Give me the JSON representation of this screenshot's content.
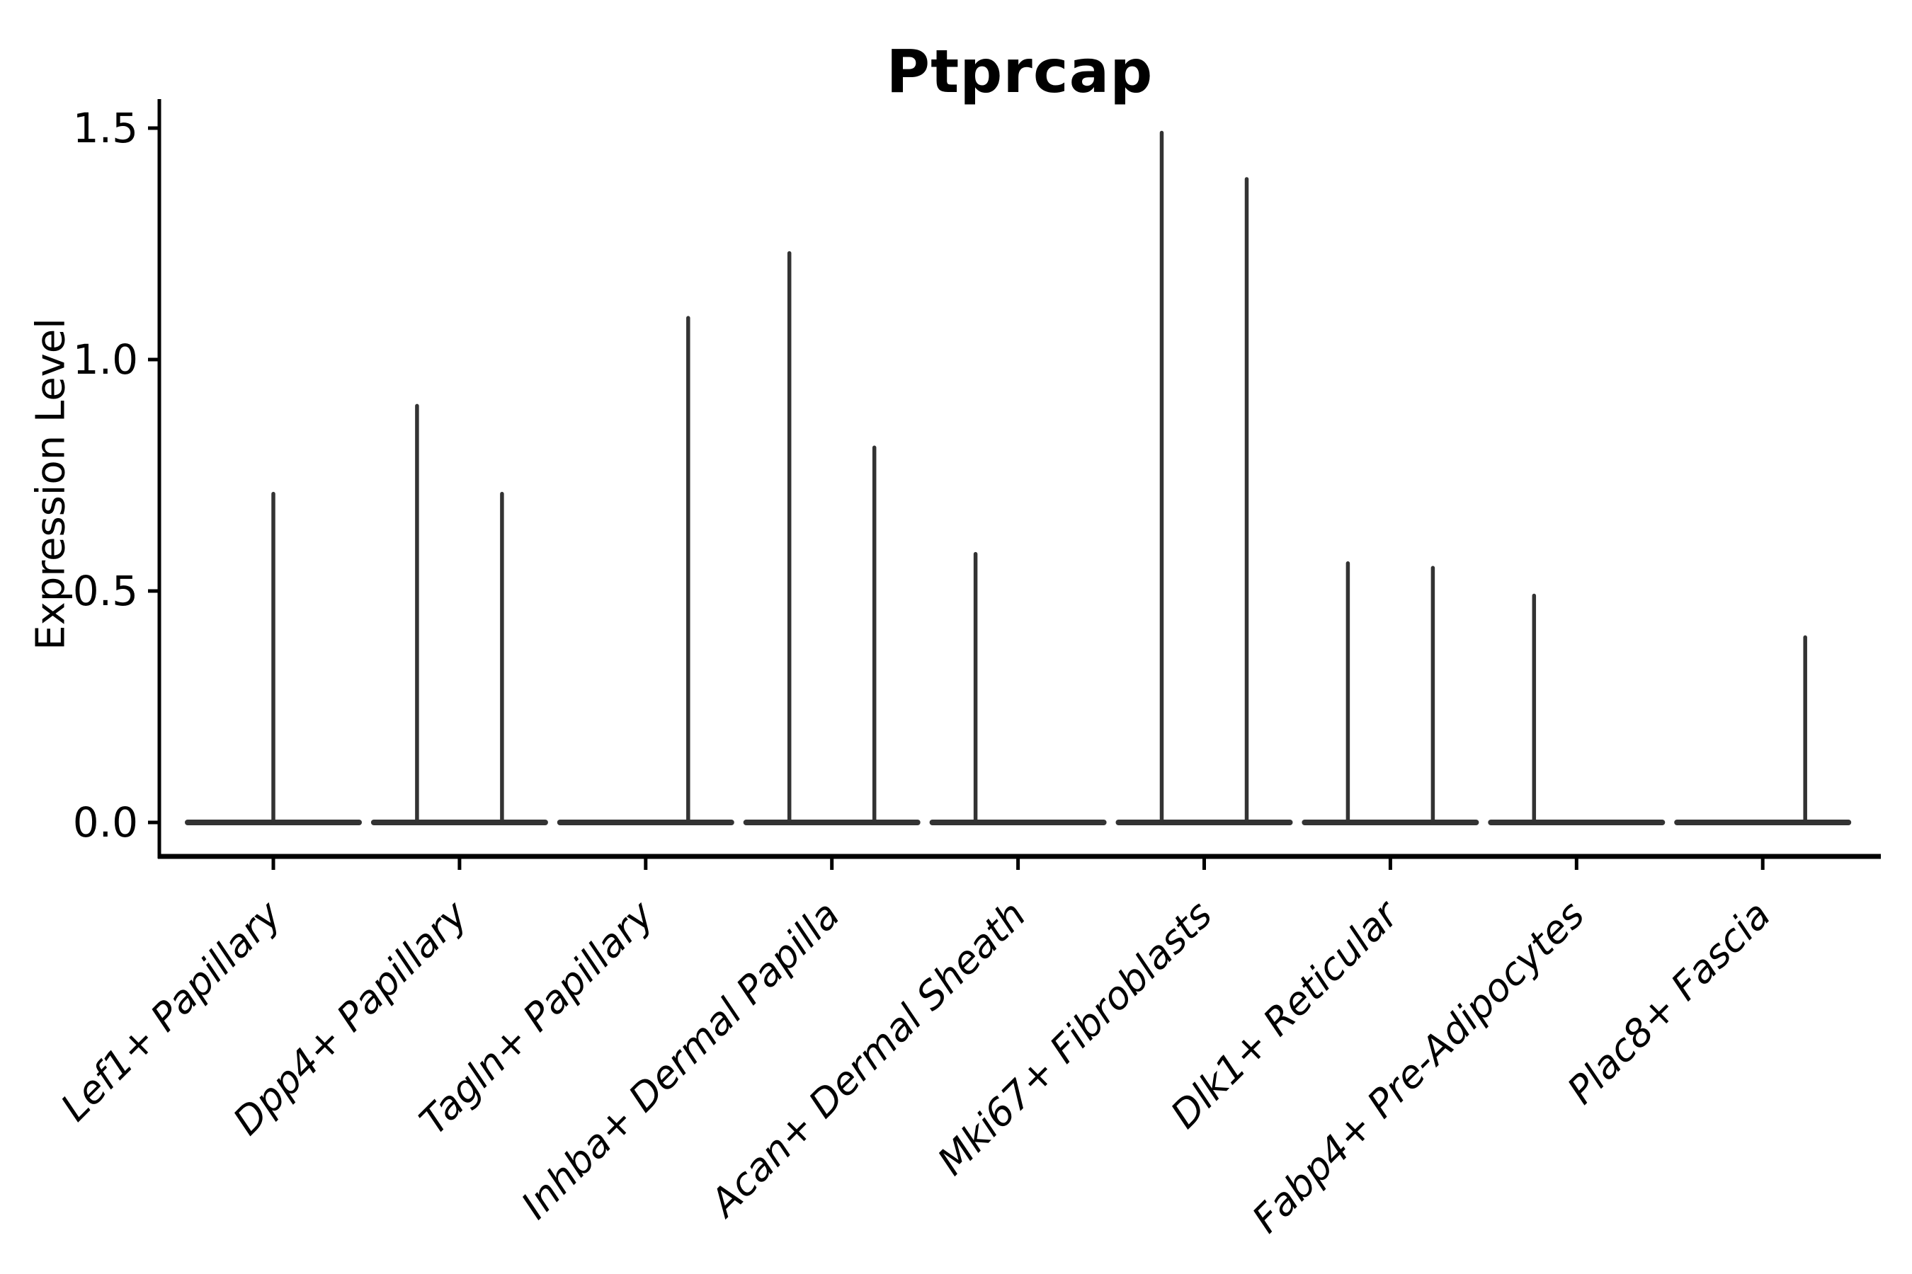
{
  "title": "Ptprcap",
  "axes": {
    "y_label": "Expression Level",
    "y_tick_labels": [
      "0.0",
      "0.5",
      "1.0",
      "1.5"
    ],
    "y_tick_values": [
      0.0,
      0.5,
      1.0,
      1.5
    ]
  },
  "chart_data": {
    "type": "violin",
    "title": "Ptprcap",
    "xlabel": "",
    "ylabel": "Expression Level",
    "ylim": [
      0,
      1.5
    ],
    "y_ticks": [
      0.0,
      0.5,
      1.0,
      1.5
    ],
    "grid": false,
    "legend": "none",
    "categories": [
      "Lef1+ Papillary",
      "Dpp4+ Papillary",
      "Tagln+ Papillary",
      "Inhba+ Dermal Papilla",
      "Acan+ Dermal Sheath",
      "Mki67+ Fibroblasts",
      "Dlk1+ Reticular",
      "Fabp4+ Pre-Adipocytes",
      "Plac8+ Fascia"
    ],
    "violins": [
      {
        "category": "Lef1+ Papillary",
        "baseline_value": 0.0,
        "spikes": [
          {
            "position": "center",
            "max": 0.71
          }
        ]
      },
      {
        "category": "Dpp4+ Papillary",
        "baseline_value": 0.0,
        "spikes": [
          {
            "position": "left",
            "max": 0.9
          },
          {
            "position": "right",
            "max": 0.71
          }
        ]
      },
      {
        "category": "Tagln+ Papillary",
        "baseline_value": 0.0,
        "spikes": [
          {
            "position": "right",
            "max": 1.09
          }
        ]
      },
      {
        "category": "Inhba+ Dermal Papilla",
        "baseline_value": 0.0,
        "spikes": [
          {
            "position": "left",
            "max": 1.23
          },
          {
            "position": "right",
            "max": 0.81
          }
        ]
      },
      {
        "category": "Acan+ Dermal Sheath",
        "baseline_value": 0.0,
        "spikes": [
          {
            "position": "left",
            "max": 0.58
          }
        ]
      },
      {
        "category": "Mki67+ Fibroblasts",
        "baseline_value": 0.0,
        "spikes": [
          {
            "position": "left",
            "max": 1.49
          },
          {
            "position": "right",
            "max": 1.39
          }
        ]
      },
      {
        "category": "Dlk1+ Reticular",
        "baseline_value": 0.0,
        "spikes": [
          {
            "position": "left",
            "max": 0.56
          },
          {
            "position": "right",
            "max": 0.55
          }
        ]
      },
      {
        "category": "Fabp4+ Pre-Adipocytes",
        "baseline_value": 0.0,
        "spikes": [
          {
            "position": "left",
            "max": 0.49
          }
        ]
      },
      {
        "category": "Plac8+ Fascia",
        "baseline_value": 0.0,
        "spikes": [
          {
            "position": "right",
            "max": 0.4
          }
        ]
      }
    ],
    "colors": {
      "violin": "#333333",
      "axis": "#000000",
      "text": "#000000",
      "background": "#ffffff"
    }
  }
}
